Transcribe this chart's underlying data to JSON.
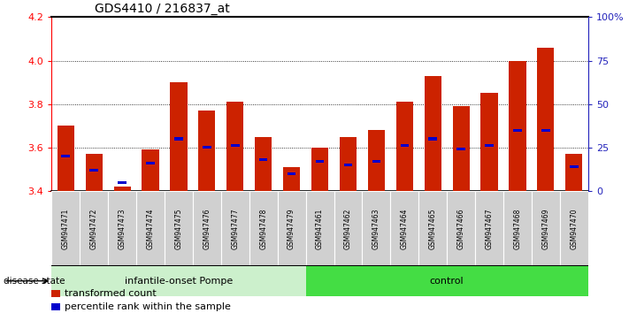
{
  "title": "GDS4410 / 216837_at",
  "samples": [
    "GSM947471",
    "GSM947472",
    "GSM947473",
    "GSM947474",
    "GSM947475",
    "GSM947476",
    "GSM947477",
    "GSM947478",
    "GSM947479",
    "GSM947461",
    "GSM947462",
    "GSM947463",
    "GSM947464",
    "GSM947465",
    "GSM947466",
    "GSM947467",
    "GSM947468",
    "GSM947469",
    "GSM947470"
  ],
  "transformed_count": [
    3.7,
    3.57,
    3.42,
    3.59,
    3.9,
    3.77,
    3.81,
    3.65,
    3.51,
    3.6,
    3.65,
    3.68,
    3.81,
    3.93,
    3.79,
    3.85,
    4.0,
    4.06,
    3.57
  ],
  "percentile_rank": [
    20,
    12,
    5,
    16,
    30,
    25,
    26,
    18,
    10,
    17,
    15,
    17,
    26,
    30,
    24,
    26,
    35,
    35,
    14
  ],
  "group_labels": [
    "infantile-onset Pompe",
    "control"
  ],
  "group_starts": [
    0,
    9
  ],
  "group_ends": [
    9,
    19
  ],
  "group_colors": [
    "#ccf0cc",
    "#44dd44"
  ],
  "ylim_left": [
    3.4,
    4.2
  ],
  "ylim_right": [
    0,
    100
  ],
  "yticks_left": [
    3.4,
    3.6,
    3.8,
    4.0,
    4.2
  ],
  "yticks_right": [
    0,
    25,
    50,
    75,
    100
  ],
  "ytick_labels_right": [
    "0",
    "25",
    "50",
    "75",
    "100%"
  ],
  "grid_values": [
    3.6,
    3.8,
    4.0
  ],
  "bar_color": "#cc2200",
  "percentile_color": "#0000cc",
  "bar_width": 0.6,
  "label_bg_color": "#d0d0d0",
  "legend_labels": [
    "transformed count",
    "percentile rank within the sample"
  ]
}
